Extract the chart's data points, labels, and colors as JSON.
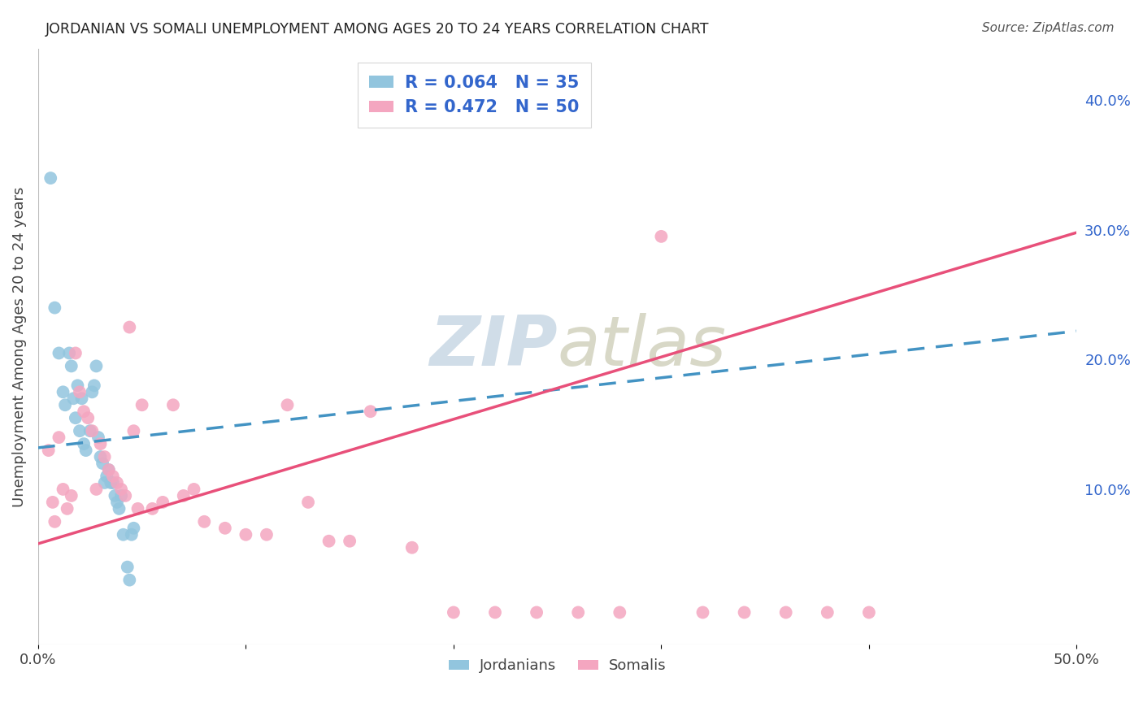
{
  "title": "JORDANIAN VS SOMALI UNEMPLOYMENT AMONG AGES 20 TO 24 YEARS CORRELATION CHART",
  "source": "Source: ZipAtlas.com",
  "ylabel": "Unemployment Among Ages 20 to 24 years",
  "xlim": [
    0.0,
    0.5
  ],
  "ylim": [
    -0.02,
    0.44
  ],
  "x_tick_positions": [
    0.0,
    0.1,
    0.2,
    0.3,
    0.4,
    0.5
  ],
  "x_tick_labels": [
    "0.0%",
    "",
    "",
    "",
    "",
    "50.0%"
  ],
  "y_ticks_right": [
    0.1,
    0.2,
    0.3,
    0.4
  ],
  "y_tick_labels_right": [
    "10.0%",
    "20.0%",
    "30.0%",
    "40.0%"
  ],
  "legend_jordan_r": "R = 0.064",
  "legend_jordan_n": "N = 35",
  "legend_somali_r": "R = 0.472",
  "legend_somali_n": "N = 50",
  "jordan_color": "#92c5de",
  "somali_color": "#f4a6c0",
  "jordan_line_color": "#4393c3",
  "somali_line_color": "#e8507a",
  "legend_text_color": "#3366cc",
  "background_color": "#ffffff",
  "grid_color": "#c8c8c8",
  "watermark_color": "#d0dde8",
  "jordan_line_x0": 0.0,
  "jordan_line_y0": 0.132,
  "jordan_line_x1": 0.5,
  "jordan_line_y1": 0.222,
  "somali_line_x0": 0.0,
  "somali_line_y0": 0.058,
  "somali_line_x1": 0.5,
  "somali_line_y1": 0.298,
  "jordan_x": [
    0.006,
    0.008,
    0.01,
    0.012,
    0.013,
    0.015,
    0.016,
    0.017,
    0.018,
    0.019,
    0.02,
    0.021,
    0.022,
    0.023,
    0.025,
    0.026,
    0.027,
    0.028,
    0.029,
    0.03,
    0.031,
    0.032,
    0.033,
    0.034,
    0.035,
    0.036,
    0.037,
    0.038,
    0.039,
    0.04,
    0.041,
    0.043,
    0.044,
    0.045,
    0.046
  ],
  "jordan_y": [
    0.34,
    0.24,
    0.205,
    0.175,
    0.165,
    0.205,
    0.195,
    0.17,
    0.155,
    0.18,
    0.145,
    0.17,
    0.135,
    0.13,
    0.145,
    0.175,
    0.18,
    0.195,
    0.14,
    0.125,
    0.12,
    0.105,
    0.11,
    0.115,
    0.105,
    0.105,
    0.095,
    0.09,
    0.085,
    0.095,
    0.065,
    0.04,
    0.03,
    0.065,
    0.07
  ],
  "somali_x": [
    0.005,
    0.007,
    0.008,
    0.01,
    0.012,
    0.014,
    0.016,
    0.018,
    0.02,
    0.022,
    0.024,
    0.026,
    0.028,
    0.03,
    0.032,
    0.034,
    0.036,
    0.038,
    0.04,
    0.042,
    0.044,
    0.046,
    0.048,
    0.05,
    0.055,
    0.06,
    0.065,
    0.07,
    0.075,
    0.08,
    0.09,
    0.1,
    0.11,
    0.12,
    0.13,
    0.14,
    0.15,
    0.16,
    0.18,
    0.2,
    0.22,
    0.24,
    0.26,
    0.28,
    0.3,
    0.32,
    0.34,
    0.36,
    0.38,
    0.4
  ],
  "somali_y": [
    0.13,
    0.09,
    0.075,
    0.14,
    0.1,
    0.085,
    0.095,
    0.205,
    0.175,
    0.16,
    0.155,
    0.145,
    0.1,
    0.135,
    0.125,
    0.115,
    0.11,
    0.105,
    0.1,
    0.095,
    0.225,
    0.145,
    0.085,
    0.165,
    0.085,
    0.09,
    0.165,
    0.095,
    0.1,
    0.075,
    0.07,
    0.065,
    0.065,
    0.165,
    0.09,
    0.06,
    0.06,
    0.16,
    0.055,
    0.005,
    0.005,
    0.005,
    0.005,
    0.005,
    0.295,
    0.005,
    0.005,
    0.005,
    0.005,
    0.005
  ]
}
